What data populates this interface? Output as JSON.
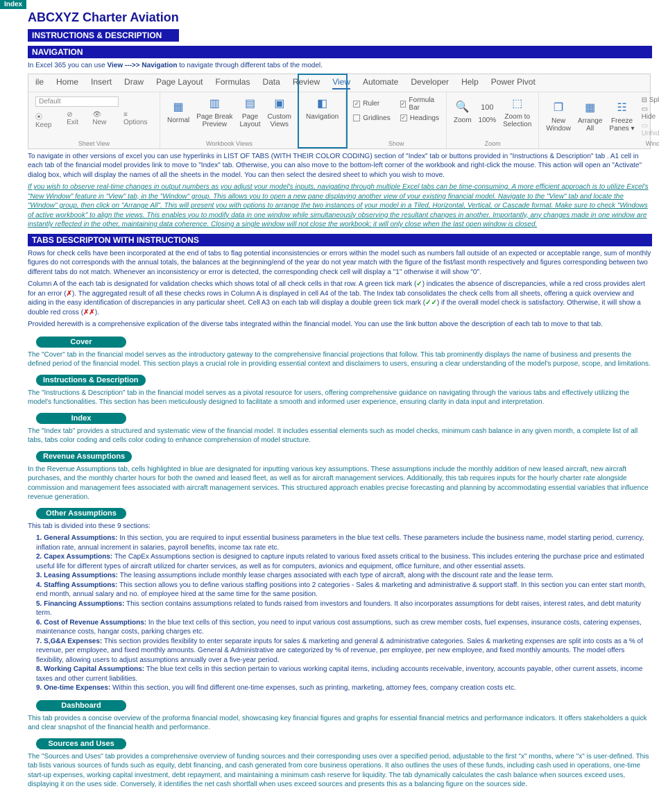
{
  "index_badge": "Index",
  "title": "ABCXYZ Charter Aviation",
  "headers": {
    "instructions": "INSTRUCTIONS & DESCRIPTION",
    "navigation": "NAVIGATION",
    "tabs_desc": "TABS DESCRIPTON WITH INSTRUCTIONS"
  },
  "nav_line": {
    "prefix": "In Excel 365 you can use ",
    "bold": "View  --->> Navigation",
    "suffix": " to navigate through different tabs of the model."
  },
  "ribbon": {
    "tabs": [
      "ile",
      "Home",
      "Insert",
      "Draw",
      "Page Layout",
      "Formulas",
      "Data",
      "Review",
      "View",
      "Automate",
      "Developer",
      "Help",
      "Power Pivot"
    ],
    "active_tab": "View",
    "sheetview": {
      "default": "Default",
      "keep": "Keep",
      "exit": "Exit",
      "new": "New",
      "options": "Options",
      "label": "Sheet View"
    },
    "workbookviews": {
      "normal": "Normal",
      "pagebreak": "Page Break\nPreview",
      "pagelayout": "Page\nLayout",
      "custom": "Custom\nViews",
      "label": "Workbook Views"
    },
    "navigation_btn": "Navigation",
    "show": {
      "ruler": "Ruler",
      "gridlines": "Gridlines",
      "formulabar": "Formula Bar",
      "headings": "Headings",
      "label": "Show"
    },
    "zoom": {
      "zoom": "Zoom",
      "hundred": "100%",
      "zoomsel": "Zoom to\nSelection",
      "label": "Zoom"
    },
    "window": {
      "newwin": "New\nWindow",
      "arrange": "Arrange\nAll",
      "freeze": "Freeze\nPanes ▾",
      "split": "Split",
      "hide": "Hide",
      "unhide": "Unhide",
      "label": "Windo"
    }
  },
  "nav_para": "To navigate in other versions of excel you can use hyperlinks in LIST OF TABS (WITH THEIR COLOR CODING) section of \"Index\" tab or buttons provided in  \"Instructions & Description\" tab . A1 cell in each tab of the financial model provides link to move to \"Index\" tab. Otherwise, you can also move to the bottom-left corner of the workbook and right-click the mouse. This action will open an \"Activate\" dialog box, which will display the names of all the sheets in the model. You can then select the desired sheet to which you wish to move.",
  "nav_tip": "If you wish to observe real-time changes in output numbers as you adjust your model's inputs, navigating through multiple Excel tabs can be time-consuming. A more efficient approach is to utilize Excel's \"New Window\" feature in \"View\" tab, in the \"Window\" group. This allows you to open a new pane displaying another view of your existing financial model. Navigate to the \"View\" tab and locate the \"Window\" group, then click on \"Arrange All\". This will present you with options to arrange the two instances of your model in a Tiled, Horizontal, Vertical, or Cascade format. Make sure to check \"Windows of active workbook\" to align the views. This enables you to modify data in one window while simultaneously observing the resultant changes in another. Importantly, any changes made in one window are instantly reflected in the other, maintaining data coherence. Closing a single window will not close the workbook; it will only close when the last open window is closed.",
  "checks_para1": "Rows for check cells have been incorporated at the end of tabs to flag potential inconsistencies or errors within the model such as numbers fall outside of an expected or acceptable range, sum of monthly figures do not corresponds with the annual totals, the balances at the beginning/end of the year do not year match with the figure of the fist/last month respectively and figures corresponding between two different tabs do not match. Whenever an inconsistency or error is detected, the corresponding check cell will display a \"1\" otherwise it will show \"0\".",
  "checks_para2_a": "Column A of the each tab is designated for validation checks which shows total of all check cells in that row. A green tick mark (",
  "checks_para2_b": ") indicates the absence of discrepancies, while a red cross provides alert for an error (",
  "checks_para2_c": "). The aggregated result of all these checks rows in Column A is displayed in cell A4 of the tab. The Index tab consolidates the check cells from all sheets, offering a quick overview and aiding in the easy identification of discrepancies in any particular sheet. Cell A3 on each tab will display a double green tick mark (",
  "checks_para2_d": ") if the overall model check is satisfactory. Otherwise, it will show a double red cross (",
  "checks_para2_e": ").",
  "checks_para3": "Provided herewith is a comprehensive explication of the diverse tabs integrated within the financial model. You can use the link button above the description of each tab to move to that tab.",
  "tabs": {
    "cover": {
      "title": "Cover",
      "desc": "The \"Cover\" tab in the financial model serves as the introductory gateway to the comprehensive financial projections that follow. This tab prominently displays the name of business and presents the defined period of the financial model. This section plays  a crucial role in providing essential context and disclaimers to users, ensuring a clear understanding of the model's purpose, scope, and limitations."
    },
    "instr": {
      "title": "Instructions & Description",
      "desc": "The \"Instructions & Description\" tab in the financial model serves as a pivotal resource for users, offering comprehensive guidance on navigating through the various tabs and effectively utilizing the model's functionalities. This section has been meticulously designed to facilitate a smooth and informed user experience, ensuring clarity in data input and interpretation."
    },
    "index": {
      "title": "Index",
      "desc": "The \"Index tab\" provides a structured and systematic view of the financial model. It includes essential elements such as model checks, minimum cash balance in any given month, a complete list of all tabs, tabs color coding and cells color coding to enhance comprehension of model structure."
    },
    "revenue": {
      "title": "Revenue Assumptions",
      "desc": "In the Revenue Assumptions tab, cells highlighted in blue are designated for inputting various key assumptions. These assumptions include the monthly addition of new leased aircraft, new aircraft purchases, and the monthly charter hours  for both the owned and leased fleet, as well as for aircraft management services. Additionally, this tab requires inputs for the hourly charter rate alongside commission and management fees associated with aircraft management services. This structured approach enables precise forecasting and planning by accommodating essential variables that influence revenue generation."
    },
    "other": {
      "title": "Other Assumptions",
      "intro": "This tab is divided into these 9 sections:"
    },
    "dashboard": {
      "title": "Dashboard",
      "desc": "This tab provides a concise overview of the proforma financial model, showcasing key financial figures and graphs for essential financial metrics and performance indicators. It offers stakeholders a quick and clear snapshot of the financial health and performance."
    },
    "sources": {
      "title": "Sources and Uses",
      "desc": "The \"Sources and Uses\" tab provides a comprehensive overview of funding sources and their corresponding uses over a specified period, adjustable to the first \"x\" months, where \"x\" is user-defined. This tab lists various sources of funds such as equity, debt financing, and cash generated from core business operations. It also outlines the uses of these funds, including cash used in operations, one-time start-up expenses, working capital investment, debt repayment, and maintaining  a minimum cash reserve for liquidity. The tab dynamically calculates the cash balance when sources exceed uses, displaying it on the uses side. Conversely, it identifies the net cash shortfall when uses exceed sources and presents this as a balancing figure on the sources side."
    }
  },
  "other_sections": [
    {
      "h": "1. General Assumptions:",
      "t": " In this section, you are required to input essential business parameters in the blue text cells. These parameters include the business name, model starting period, currency, inflation rate, annual increment in salaries, payroll benefits, income tax rate etc."
    },
    {
      "h": "2. Capex Assumptions:",
      "t": " The CapEx Assumptions section is designed to capture inputs related to various fixed assets critical to the business. This includes entering the purchase price and estimated useful life for different types of aircraft utilized for charter services, as well as for computers, avionics and equipment, office furniture, and other essential assets."
    },
    {
      "h": "3. Leasing Assumptions:",
      "t": " The leasing assumptions include monthly lease charges associated with each type of aircraft, along with  the discount rate and the lease term."
    },
    {
      "h": "4. Staffing Assumptions:",
      "t": " This section allows you to define various staffing positions into 2 categories - Sales & marketing and administrative & support staff. In this section you can enter start month, end month, annual salary and no. of employee hired at  the same time for the same position."
    },
    {
      "h": "5. Financing Assumptions:",
      "t": " This section contains assumptions related to funds raised from investors and founders. It also incorporates assumptions for debt raises, interest rates, and debt maturity term."
    },
    {
      "h": "6. Cost of Revenue Assumptions:",
      "t": " In the blue text cells of this section, you need to input various cost assumptions, such as crew member costs, fuel expenses, insurance costs, catering expenses, maintenance costs, hangar costs, parking charges etc."
    },
    {
      "h": "7. S,G&A Expenses:",
      "t": " This section provides flexibility to enter separate inputs for sales & marketing and general & administrative categories. Sales & marketing expenses are split into costs as a % of revenue, per employee, and fixed monthly amounts. General & Administrative are categorized by % of revenue, per employee, per new employee, and fixed monthly amounts. The model offers flexibility, allowing users to adjust assumptions annually over a  five-year  period."
    },
    {
      "h": "8. Working Capital Assumptions:",
      "t": " The blue text cells in this section pertain to various working capital items, including accounts receivable, inventory, accounts payable, other current assets, income taxes and other current liabilities."
    },
    {
      "h": "9. One-time Expenses:",
      "t": " Within this section, you will find different one-time expenses, such as printing, marketing, attorney fees, company creation costs etc."
    }
  ]
}
